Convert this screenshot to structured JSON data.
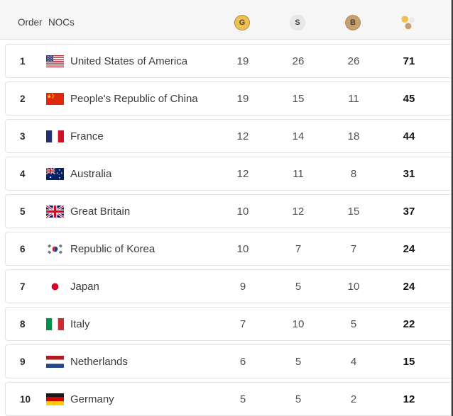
{
  "header": {
    "order_label": "Order",
    "nocs_label": "NOCs",
    "gold_label": "G",
    "silver_label": "S",
    "bronze_label": "B",
    "total_icon": "medal-dots-icon"
  },
  "colors": {
    "gold": "#EFC050",
    "gold_border": "#AD8C3B",
    "silver": "#E8E8EA",
    "bronze": "#C79E6E",
    "bronze_border": "#BA9161"
  },
  "table": {
    "rows": [
      {
        "order": "1",
        "flag": "usa",
        "noc": "United States of America",
        "gold": 19,
        "silver": 26,
        "bronze": 26,
        "total": 71
      },
      {
        "order": "2",
        "flag": "chn",
        "noc": "People's Republic of China",
        "gold": 19,
        "silver": 15,
        "bronze": 11,
        "total": 45
      },
      {
        "order": "3",
        "flag": "fra",
        "noc": "France",
        "gold": 12,
        "silver": 14,
        "bronze": 18,
        "total": 44
      },
      {
        "order": "4",
        "flag": "aus",
        "noc": "Australia",
        "gold": 12,
        "silver": 11,
        "bronze": 8,
        "total": 31
      },
      {
        "order": "5",
        "flag": "gbr",
        "noc": "Great Britain",
        "gold": 10,
        "silver": 12,
        "bronze": 15,
        "total": 37
      },
      {
        "order": "6",
        "flag": "kor",
        "noc": "Republic of Korea",
        "gold": 10,
        "silver": 7,
        "bronze": 7,
        "total": 24
      },
      {
        "order": "7",
        "flag": "jpn",
        "noc": "Japan",
        "gold": 9,
        "silver": 5,
        "bronze": 10,
        "total": 24
      },
      {
        "order": "8",
        "flag": "ita",
        "noc": "Italy",
        "gold": 7,
        "silver": 10,
        "bronze": 5,
        "total": 22
      },
      {
        "order": "9",
        "flag": "ned",
        "noc": "Netherlands",
        "gold": 6,
        "silver": 5,
        "bronze": 4,
        "total": 15
      },
      {
        "order": "10",
        "flag": "ger",
        "noc": "Germany",
        "gold": 5,
        "silver": 5,
        "bronze": 2,
        "total": 12
      }
    ]
  }
}
